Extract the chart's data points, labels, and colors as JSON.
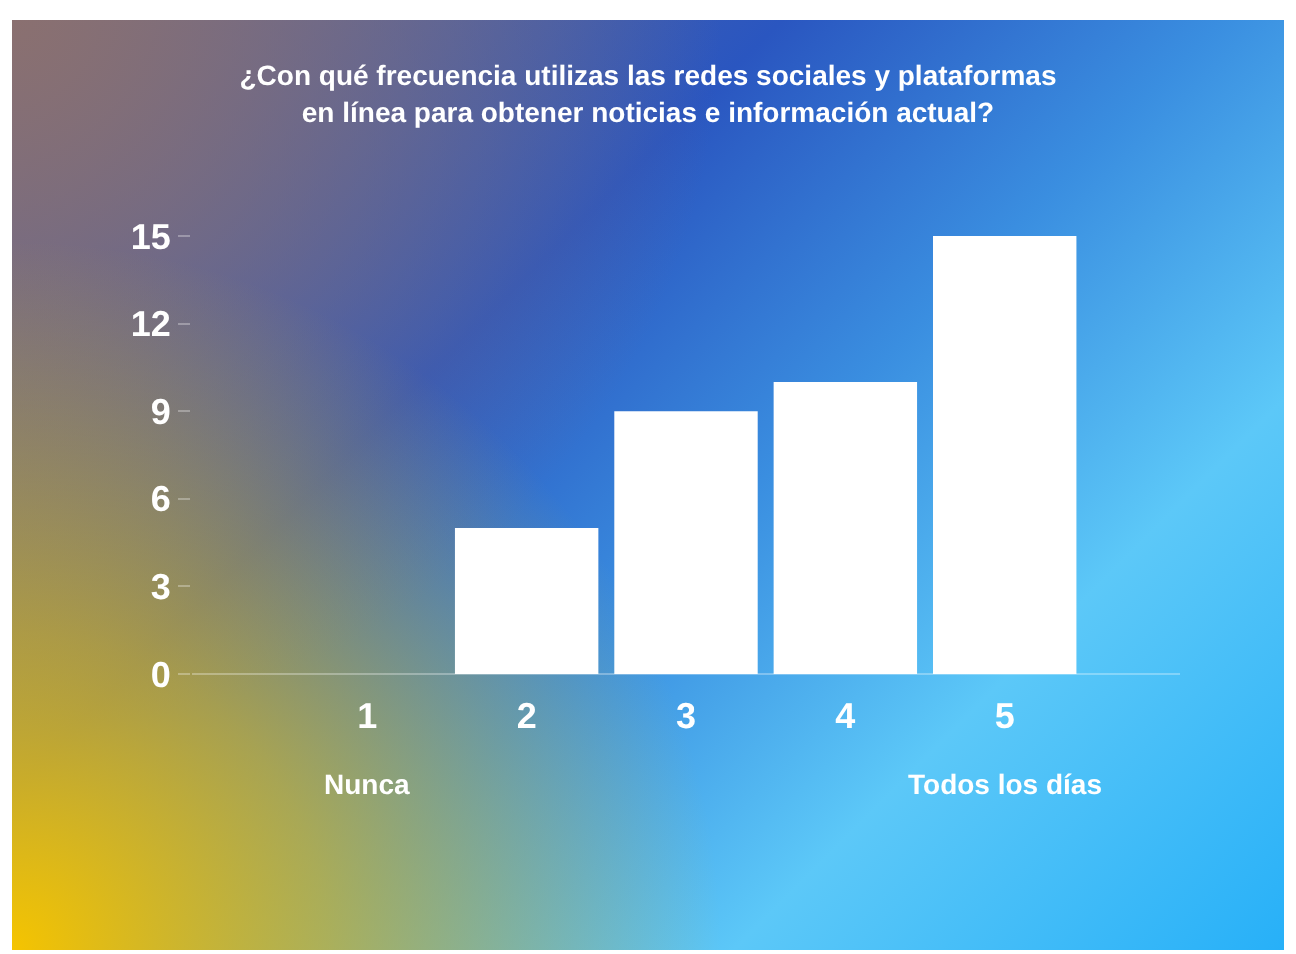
{
  "chart_data": {
    "type": "bar",
    "title": "¿Con qué frecuencia utilizas las redes sociales y plataformas\nen línea para obtener noticias e información actual?",
    "categories": [
      "1",
      "2",
      "3",
      "4",
      "5"
    ],
    "values": [
      0,
      5,
      9,
      10,
      15
    ],
    "color": "#ffffff",
    "ylim": [
      0,
      15
    ],
    "yticks": [
      0,
      3,
      6,
      9,
      12,
      15
    ],
    "grid": false,
    "annotations": [
      "Nunca",
      "Todos los días"
    ]
  }
}
